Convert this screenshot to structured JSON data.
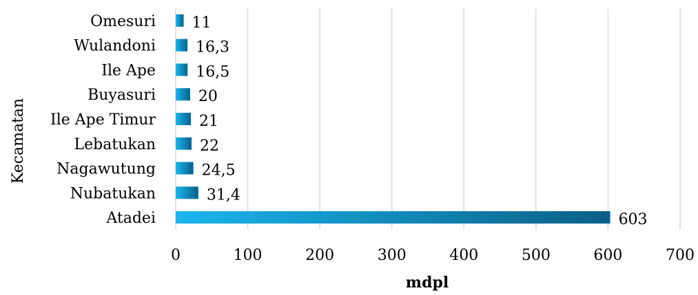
{
  "chart_data": {
    "type": "bar",
    "orientation": "horizontal",
    "categories": [
      "Omesuri",
      "Wulandoni",
      "Ile Ape",
      "Buyasuri",
      "Ile Ape Timur",
      "Lebatukan",
      "Nagawutung",
      "Nubatukan",
      "Atadei"
    ],
    "values": [
      11,
      16.3,
      16.5,
      20,
      21,
      22,
      24.5,
      31.4,
      603
    ],
    "value_labels": [
      "11",
      "16,3",
      "16,5",
      "20",
      "21",
      "22",
      "24,5",
      "31,4",
      "603"
    ],
    "xlabel": "mdpl",
    "ylabel": "Kecamatan",
    "xlim": [
      0,
      700
    ],
    "xticks": [
      0,
      100,
      200,
      300,
      400,
      500,
      600,
      700
    ],
    "grid": "vertical",
    "legend": "none",
    "colors": {
      "bar_start": "#1bb5ee",
      "bar_end": "#0a5f86",
      "grid": "#d9d9d9"
    }
  }
}
